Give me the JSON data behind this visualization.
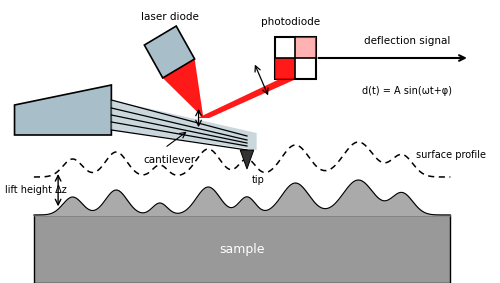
{
  "bg_color": "#ffffff",
  "labels": {
    "laser_diode": "laser diode",
    "photodiode": "photodiode",
    "cantilever": "cantilever",
    "tip": "tip",
    "deflection_signal": "deflection signal",
    "deflection_eq": "d(t) = A sin(ωt+φ)",
    "surface_profile": "surface profile",
    "lift_height": "lift height Δz",
    "sample": "sample"
  },
  "colors": {
    "cantilever_fill": "#a8bec8",
    "cantilever_edge": "#000000",
    "laser_diode_fill": "#a8bec8",
    "laser_diode_edge": "#000000",
    "photodiode_fill": "#ffffff",
    "photodiode_edge": "#000000",
    "photodiode_red": "#ff0000",
    "laser_beam": "#ff0000",
    "sample_fill": "#999999",
    "sample_edge": "#000000",
    "surface_fill": "#aaaaaa",
    "dashed_line": "#333333"
  },
  "coord": {
    "xlim": [
      0,
      5
    ],
    "ylim": [
      0,
      2.83
    ]
  }
}
